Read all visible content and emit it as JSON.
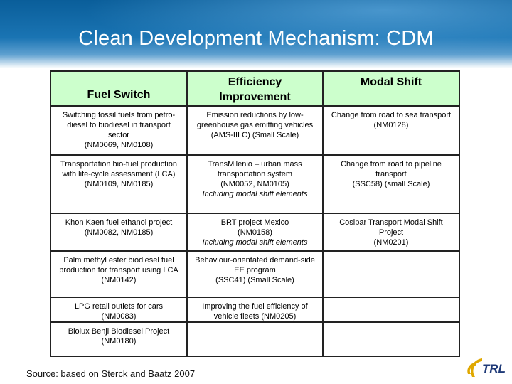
{
  "slide": {
    "title": "Clean Development Mechanism: CDM",
    "source": "Source: based on Sterck and Baatz 2007",
    "logo_text": "TRL",
    "colors": {
      "header_blue": "#1a74b3",
      "table_header_green": "#ccffcc",
      "logo_gold": "#e0a800",
      "logo_navy": "#1f3a78"
    }
  },
  "table": {
    "headers": [
      {
        "label": "Fuel Switch"
      },
      {
        "label": "Efficiency Improvement"
      },
      {
        "label": "Modal Shift"
      }
    ],
    "rows": [
      [
        {
          "lines": [
            "Switching fossil fuels from petro-diesel to biodiesel in transport sector",
            "(NM0069, NM0108)"
          ],
          "italic": []
        },
        {
          "lines": [
            "Emission reductions by low-greenhouse gas emitting vehicles (AMS-III C) (Small Scale)"
          ],
          "italic": []
        },
        {
          "lines": [
            "Change from road to sea transport",
            "(NM0128)"
          ],
          "italic": []
        }
      ],
      [
        {
          "lines": [
            "Transportation bio-fuel production with life-cycle assessment (LCA)",
            "(NM0109, NM0185)"
          ],
          "italic": []
        },
        {
          "lines": [
            "TransMilenio – urban mass transportation system",
            "(NM0052, NM0105)",
            "Including modal shift elements"
          ],
          "italic": [
            2
          ]
        },
        {
          "lines": [
            "Change from road to pipeline transport",
            "(SSC58) (small Scale)"
          ],
          "italic": []
        }
      ],
      [
        {
          "lines": [
            "Khon Kaen fuel ethanol project",
            "(NM0082, NM0185)"
          ],
          "italic": []
        },
        {
          "lines": [
            "BRT project Mexico",
            "(NM0158)",
            "Including modal shift elements"
          ],
          "italic": [
            2
          ]
        },
        {
          "lines": [
            "Cosipar Transport Modal Shift Project",
            "(NM0201)"
          ],
          "italic": []
        }
      ],
      [
        {
          "lines": [
            "Palm methyl ester biodiesel fuel production for transport using LCA",
            "(NM0142)"
          ],
          "italic": []
        },
        {
          "lines": [
            "Behaviour-orientated demand-side EE program",
            "(SSC41) (Small Scale)"
          ],
          "italic": []
        },
        {
          "lines": [],
          "italic": []
        }
      ],
      [
        {
          "lines": [
            "LPG retail outlets for cars",
            "(NM0083)"
          ],
          "italic": []
        },
        {
          "lines": [
            "Improving the fuel efficiency of vehicle fleets (NM0205)"
          ],
          "italic": []
        },
        {
          "lines": [],
          "italic": []
        }
      ],
      [
        {
          "lines": [
            "Biolux Benji Biodiesel Project",
            "(NM0180)"
          ],
          "italic": []
        },
        {
          "lines": [],
          "italic": []
        },
        {
          "lines": [],
          "italic": []
        }
      ]
    ]
  }
}
